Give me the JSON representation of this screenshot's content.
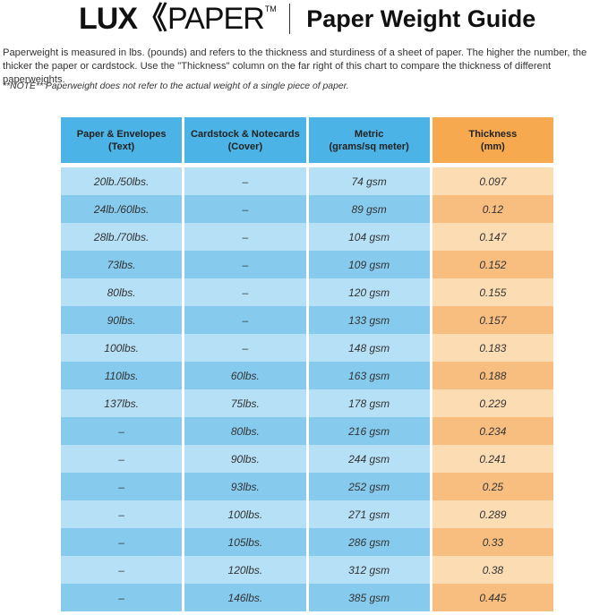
{
  "header": {
    "logo_bold": "LUX",
    "logo_chevrons": "《",
    "logo_light": "PAPER",
    "logo_tm": "TM",
    "title": "Paper Weight Guide"
  },
  "intro": {
    "text": "Paperweight is measured in lbs. (pounds) and refers to the thickness and sturdiness of a sheet of paper. The higher the number, the thicker the paper or cardstock. Use the \"Thickness\" column on the far right of this chart to compare the thickness of different paperweights.",
    "note": "**NOTE** Paperweight does not refer to the actual weight of a single piece of paper."
  },
  "colors": {
    "header_blue": "#4bb3e6",
    "header_orange": "#f6a94f",
    "row_blue_light": "#b5e0f6",
    "row_blue_dark": "#86cbee",
    "row_orange_light": "#fbdcb3",
    "row_orange_dark": "#f7be80"
  },
  "table": {
    "headers": [
      {
        "line1": "Paper & Envelopes",
        "line2": "(Text)"
      },
      {
        "line1": "Cardstock & Notecards",
        "line2": "(Cover)"
      },
      {
        "line1": "Metric",
        "line2": "(grams/sq meter)"
      },
      {
        "line1": "Thickness",
        "line2": "(mm)"
      }
    ],
    "rows": [
      [
        "20lb./50lbs.",
        "–",
        "74 gsm",
        "0.097"
      ],
      [
        "24lb./60lbs.",
        "–",
        "89 gsm",
        "0.12"
      ],
      [
        "28lb./70lbs.",
        "–",
        "104 gsm",
        "0.147"
      ],
      [
        "73lbs.",
        "–",
        "109 gsm",
        "0.152"
      ],
      [
        "80lbs.",
        "–",
        "120 gsm",
        "0.155"
      ],
      [
        "90lbs.",
        "–",
        "133 gsm",
        "0.157"
      ],
      [
        "100lbs.",
        "–",
        "148 gsm",
        "0.183"
      ],
      [
        "110lbs.",
        "60lbs.",
        "163 gsm",
        "0.188"
      ],
      [
        "137lbs.",
        "75lbs.",
        "178 gsm",
        "0.229"
      ],
      [
        "–",
        "80lbs.",
        "216 gsm",
        "0.234"
      ],
      [
        "–",
        "90lbs.",
        "244 gsm",
        "0.241"
      ],
      [
        "–",
        "93lbs.",
        "252 gsm",
        "0.25"
      ],
      [
        "–",
        "100lbs.",
        "271 gsm",
        "0.289"
      ],
      [
        "–",
        "105lbs.",
        "286 gsm",
        "0.33"
      ],
      [
        "–",
        "120lbs.",
        "312 gsm",
        "0.38"
      ],
      [
        "–",
        "146lbs.",
        "385 gsm",
        "0.445"
      ]
    ]
  }
}
